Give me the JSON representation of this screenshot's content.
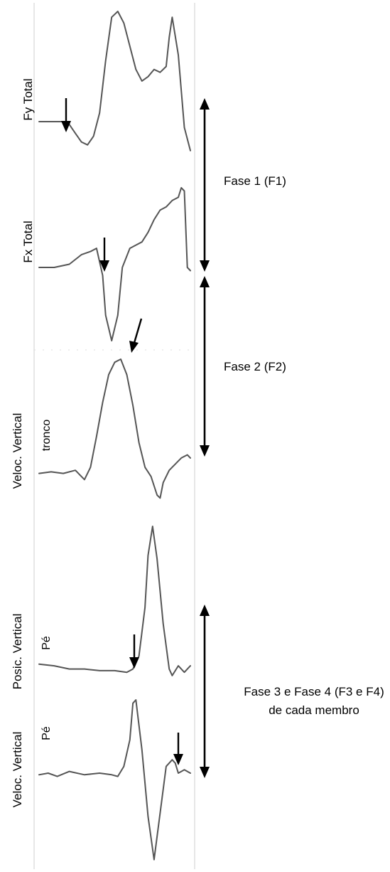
{
  "colors": {
    "trace": "#555555",
    "frame": "#cccccc",
    "arrow": "#000000",
    "text": "#000000"
  },
  "chart_data": [
    {
      "type": "line",
      "ylabel": "Fy Total",
      "sublabel": "",
      "series": [
        {
          "x": [
            0,
            0.08,
            0.16,
            0.2,
            0.24,
            0.28,
            0.32,
            0.36,
            0.4,
            0.44,
            0.48,
            0.52,
            0.56,
            0.6,
            0.64,
            0.68,
            0.72,
            0.76,
            0.8,
            0.84,
            0.86,
            0.88,
            0.92,
            0.96,
            1
          ],
          "y": [
            0.24,
            0.24,
            0.24,
            0.22,
            0.16,
            0.1,
            0.08,
            0.14,
            0.3,
            0.66,
            0.96,
            1,
            0.92,
            0.76,
            0.6,
            0.52,
            0.55,
            0.6,
            0.58,
            0.62,
            0.82,
            0.96,
            0.7,
            0.2,
            0.04
          ]
        }
      ]
    },
    {
      "type": "line",
      "ylabel": "Fx Total",
      "sublabel": "",
      "series": [
        {
          "x": [
            0,
            0.1,
            0.2,
            0.28,
            0.34,
            0.38,
            0.42,
            0.44,
            0.48,
            0.52,
            0.55,
            0.6,
            0.64,
            0.68,
            0.72,
            0.76,
            0.8,
            0.84,
            0.88,
            0.92,
            0.94,
            0.96,
            0.98,
            1
          ],
          "y": [
            0.5,
            0.5,
            0.52,
            0.58,
            0.6,
            0.62,
            0.45,
            0.2,
            0.04,
            0.2,
            0.5,
            0.62,
            0.64,
            0.66,
            0.72,
            0.8,
            0.86,
            0.88,
            0.92,
            0.94,
            1,
            0.98,
            0.5,
            0.48
          ]
        }
      ]
    },
    {
      "type": "line",
      "ylabel": "Veloc. Vertical",
      "sublabel": "tronco",
      "series": [
        {
          "x": [
            0,
            0.08,
            0.16,
            0.24,
            0.28,
            0.3,
            0.34,
            0.38,
            0.42,
            0.46,
            0.5,
            0.54,
            0.58,
            0.62,
            0.66,
            0.7,
            0.74,
            0.78,
            0.8,
            0.82,
            0.86,
            0.9,
            0.94,
            0.98,
            1
          ],
          "y": [
            0.26,
            0.27,
            0.26,
            0.28,
            0.24,
            0.22,
            0.3,
            0.5,
            0.72,
            0.9,
            0.98,
            1,
            0.9,
            0.7,
            0.46,
            0.3,
            0.24,
            0.12,
            0.1,
            0.2,
            0.28,
            0.32,
            0.36,
            0.38,
            0.36
          ]
        }
      ]
    },
    {
      "type": "line",
      "ylabel": "Posic. Vertical",
      "sublabel": "Pé",
      "series": [
        {
          "x": [
            0,
            0.1,
            0.2,
            0.3,
            0.4,
            0.5,
            0.58,
            0.62,
            0.66,
            0.7,
            0.72,
            0.75,
            0.78,
            0.82,
            0.86,
            0.88,
            0.92,
            0.96,
            1
          ],
          "y": [
            0.15,
            0.14,
            0.12,
            0.12,
            0.11,
            0.11,
            0.1,
            0.12,
            0.2,
            0.5,
            0.82,
            1,
            0.8,
            0.4,
            0.12,
            0.08,
            0.14,
            0.1,
            0.14
          ]
        }
      ]
    },
    {
      "type": "line",
      "ylabel": "Veloc. Vertical",
      "sublabel": "Pé",
      "series": [
        {
          "x": [
            0,
            0.06,
            0.12,
            0.2,
            0.3,
            0.4,
            0.48,
            0.52,
            0.56,
            0.6,
            0.62,
            0.64,
            0.68,
            0.72,
            0.76,
            0.8,
            0.84,
            0.88,
            0.9,
            0.92,
            0.96,
            1
          ],
          "y": [
            0.55,
            0.56,
            0.54,
            0.57,
            0.55,
            0.56,
            0.55,
            0.54,
            0.6,
            0.76,
            0.98,
            1,
            0.7,
            0.3,
            0.04,
            0.32,
            0.6,
            0.64,
            0.62,
            0.56,
            0.58,
            0.56
          ]
        }
      ]
    }
  ],
  "phases": [
    {
      "label": "Fase 1 (F1)"
    },
    {
      "label": "Fase 2 (F2)"
    },
    {
      "label_line1": "Fase 3 e Fase 4 (F3 e F4)",
      "label_line2": "de cada membro"
    }
  ]
}
